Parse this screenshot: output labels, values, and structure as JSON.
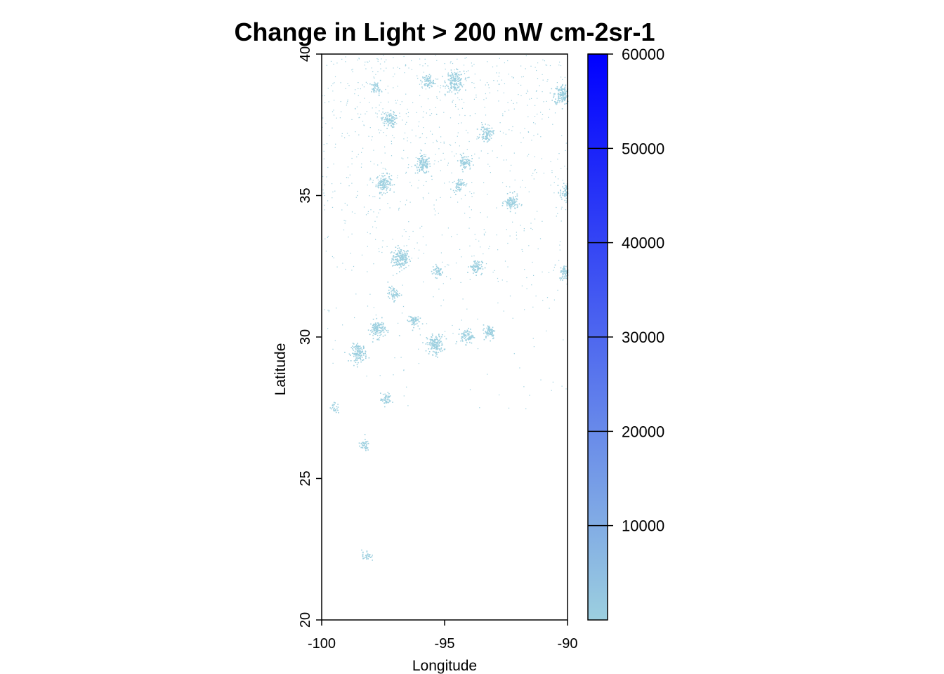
{
  "chart_data": {
    "type": "heatmap",
    "title": "Change in Light > 200 nW cm-2sr-1",
    "xlabel": "Longitude",
    "ylabel": "Latitude",
    "xlim": [
      -100,
      -90
    ],
    "ylim": [
      20,
      40
    ],
    "x_ticks": [
      -100,
      -95,
      -90
    ],
    "x_tick_labels": [
      "-100",
      "-95",
      "-90"
    ],
    "y_ticks": [
      20,
      25,
      30,
      35,
      40
    ],
    "y_tick_labels": [
      "20",
      "25",
      "30",
      "35",
      "40"
    ],
    "colorbar": {
      "range": [
        0,
        60000
      ],
      "ticks": [
        10000,
        20000,
        30000,
        40000,
        50000,
        60000
      ],
      "tick_labels": [
        "10000",
        "20000",
        "30000",
        "40000",
        "50000",
        "60000"
      ],
      "color_low": "#9ccfdf",
      "color_high": "#0000ff"
    },
    "grid": false,
    "clusters": [
      {
        "lon": -96.8,
        "lat": 32.8,
        "value": 2000
      },
      {
        "lon": -97.5,
        "lat": 35.45,
        "value": 1500
      },
      {
        "lon": -95.9,
        "lat": 36.1,
        "value": 1500
      },
      {
        "lon": -94.6,
        "lat": 39.05,
        "value": 2000
      },
      {
        "lon": -90.2,
        "lat": 38.6,
        "value": 2000
      },
      {
        "lon": -97.3,
        "lat": 37.7,
        "value": 1200
      },
      {
        "lon": -95.4,
        "lat": 29.75,
        "value": 1800
      },
      {
        "lon": -98.5,
        "lat": 29.45,
        "value": 1500
      },
      {
        "lon": -97.75,
        "lat": 30.3,
        "value": 1500
      },
      {
        "lon": -92.3,
        "lat": 34.75,
        "value": 1200
      },
      {
        "lon": -93.3,
        "lat": 37.2,
        "value": 1000
      },
      {
        "lon": -93.75,
        "lat": 32.5,
        "value": 1000
      },
      {
        "lon": -90.05,
        "lat": 35.15,
        "value": 1200
      },
      {
        "lon": -94.1,
        "lat": 30.05,
        "value": 1000
      },
      {
        "lon": -93.2,
        "lat": 30.2,
        "value": 900
      },
      {
        "lon": -90.1,
        "lat": 32.3,
        "value": 900
      },
      {
        "lon": -94.2,
        "lat": 36.2,
        "value": 900
      },
      {
        "lon": -94.45,
        "lat": 35.4,
        "value": 700
      },
      {
        "lon": -97.8,
        "lat": 38.8,
        "value": 500
      },
      {
        "lon": -95.7,
        "lat": 39.05,
        "value": 800
      },
      {
        "lon": -97.1,
        "lat": 31.55,
        "value": 700
      },
      {
        "lon": -96.3,
        "lat": 30.6,
        "value": 700
      },
      {
        "lon": -95.3,
        "lat": 32.35,
        "value": 600
      },
      {
        "lon": -98.3,
        "lat": 26.2,
        "value": 500
      },
      {
        "lon": -97.4,
        "lat": 27.8,
        "value": 600
      },
      {
        "lon": -98.2,
        "lat": 22.3,
        "value": 400
      },
      {
        "lon": -99.5,
        "lat": 27.5,
        "value": 300
      }
    ]
  }
}
